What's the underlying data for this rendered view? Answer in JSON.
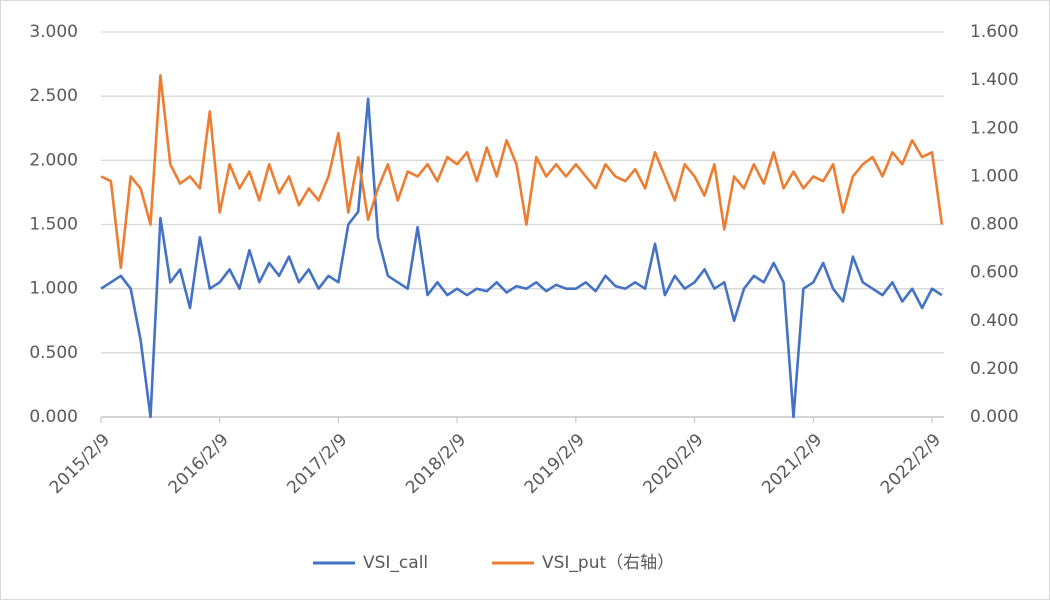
{
  "chart_data": {
    "type": "line",
    "categories": [
      "2015/2/9",
      null,
      null,
      null,
      null,
      null,
      null,
      null,
      null,
      null,
      null,
      null,
      "2016/2/9",
      null,
      null,
      null,
      null,
      null,
      null,
      null,
      null,
      null,
      null,
      null,
      "2017/2/9",
      null,
      null,
      null,
      null,
      null,
      null,
      null,
      null,
      null,
      null,
      null,
      "2018/2/9",
      null,
      null,
      null,
      null,
      null,
      null,
      null,
      null,
      null,
      null,
      null,
      "2019/2/9",
      null,
      null,
      null,
      null,
      null,
      null,
      null,
      null,
      null,
      null,
      null,
      "2020/2/9",
      null,
      null,
      null,
      null,
      null,
      null,
      null,
      null,
      null,
      null,
      null,
      "2021/2/9",
      null,
      null,
      null,
      null,
      null,
      null,
      null,
      null,
      null,
      null,
      null,
      "2022/2/9",
      null
    ],
    "series": [
      {
        "name": "VSI_call",
        "color": "#4472c4",
        "axis": "y",
        "values": [
          1.0,
          1.05,
          1.1,
          1.0,
          0.6,
          0.0,
          1.55,
          1.05,
          1.15,
          0.85,
          1.4,
          1.0,
          1.05,
          1.15,
          1.0,
          1.3,
          1.05,
          1.2,
          1.1,
          1.25,
          1.05,
          1.15,
          1.0,
          1.1,
          1.05,
          1.5,
          1.6,
          2.48,
          1.4,
          1.1,
          1.05,
          1.0,
          1.48,
          0.95,
          1.05,
          0.95,
          1.0,
          0.95,
          1.0,
          0.98,
          1.05,
          0.97,
          1.02,
          1.0,
          1.05,
          0.98,
          1.03,
          1.0,
          1.0,
          1.05,
          0.98,
          1.1,
          1.02,
          1.0,
          1.05,
          1.0,
          1.35,
          0.95,
          1.1,
          1.0,
          1.05,
          1.15,
          1.0,
          1.05,
          0.75,
          1.0,
          1.1,
          1.05,
          1.2,
          1.05,
          0.0,
          1.0,
          1.05,
          1.2,
          1.0,
          0.9,
          1.25,
          1.05,
          1.0,
          0.95,
          1.05,
          0.9,
          1.0,
          0.85,
          1.0,
          0.95
        ]
      },
      {
        "name": "VSI_put（右轴）",
        "color": "#ed7d31",
        "axis": "y2",
        "values": [
          1.0,
          0.98,
          0.62,
          1.0,
          0.95,
          0.8,
          1.42,
          1.05,
          0.97,
          1.0,
          0.95,
          1.27,
          0.85,
          1.05,
          0.95,
          1.02,
          0.9,
          1.05,
          0.93,
          1.0,
          0.88,
          0.95,
          0.9,
          1.0,
          1.18,
          0.85,
          1.08,
          0.82,
          0.95,
          1.05,
          0.9,
          1.02,
          1.0,
          1.05,
          0.98,
          1.08,
          1.05,
          1.1,
          0.98,
          1.12,
          1.0,
          1.15,
          1.05,
          0.8,
          1.08,
          1.0,
          1.05,
          1.0,
          1.05,
          1.0,
          0.95,
          1.05,
          1.0,
          0.98,
          1.03,
          0.95,
          1.1,
          1.0,
          0.9,
          1.05,
          1.0,
          0.92,
          1.05,
          0.78,
          1.0,
          0.95,
          1.05,
          0.97,
          1.1,
          0.95,
          1.02,
          0.95,
          1.0,
          0.98,
          1.05,
          0.85,
          1.0,
          1.05,
          1.08,
          1.0,
          1.1,
          1.05,
          1.15,
          1.08,
          1.1,
          0.8
        ]
      }
    ],
    "ylim": [
      0,
      3
    ],
    "yticks": [
      {
        "value": 0,
        "label": "0.000"
      },
      {
        "value": 0.5,
        "label": "0.500"
      },
      {
        "value": 1,
        "label": "1.000"
      },
      {
        "value": 1.5,
        "label": "1.500"
      },
      {
        "value": 2,
        "label": "2.000"
      },
      {
        "value": 2.5,
        "label": "2.500"
      },
      {
        "value": 3,
        "label": "3.000"
      }
    ],
    "y2lim": [
      0,
      1.6
    ],
    "y2ticks": [
      {
        "value": 0,
        "label": "0.000"
      },
      {
        "value": 0.2,
        "label": "0.200"
      },
      {
        "value": 0.4,
        "label": "0.400"
      },
      {
        "value": 0.6,
        "label": "0.600"
      },
      {
        "value": 0.8,
        "label": "0.800"
      },
      {
        "value": 1,
        "label": "1.000"
      },
      {
        "value": 1.2,
        "label": "1.200"
      },
      {
        "value": 1.4,
        "label": "1.400"
      },
      {
        "value": 1.6,
        "label": "1.600"
      }
    ],
    "grid": true,
    "legend": "bottom"
  }
}
